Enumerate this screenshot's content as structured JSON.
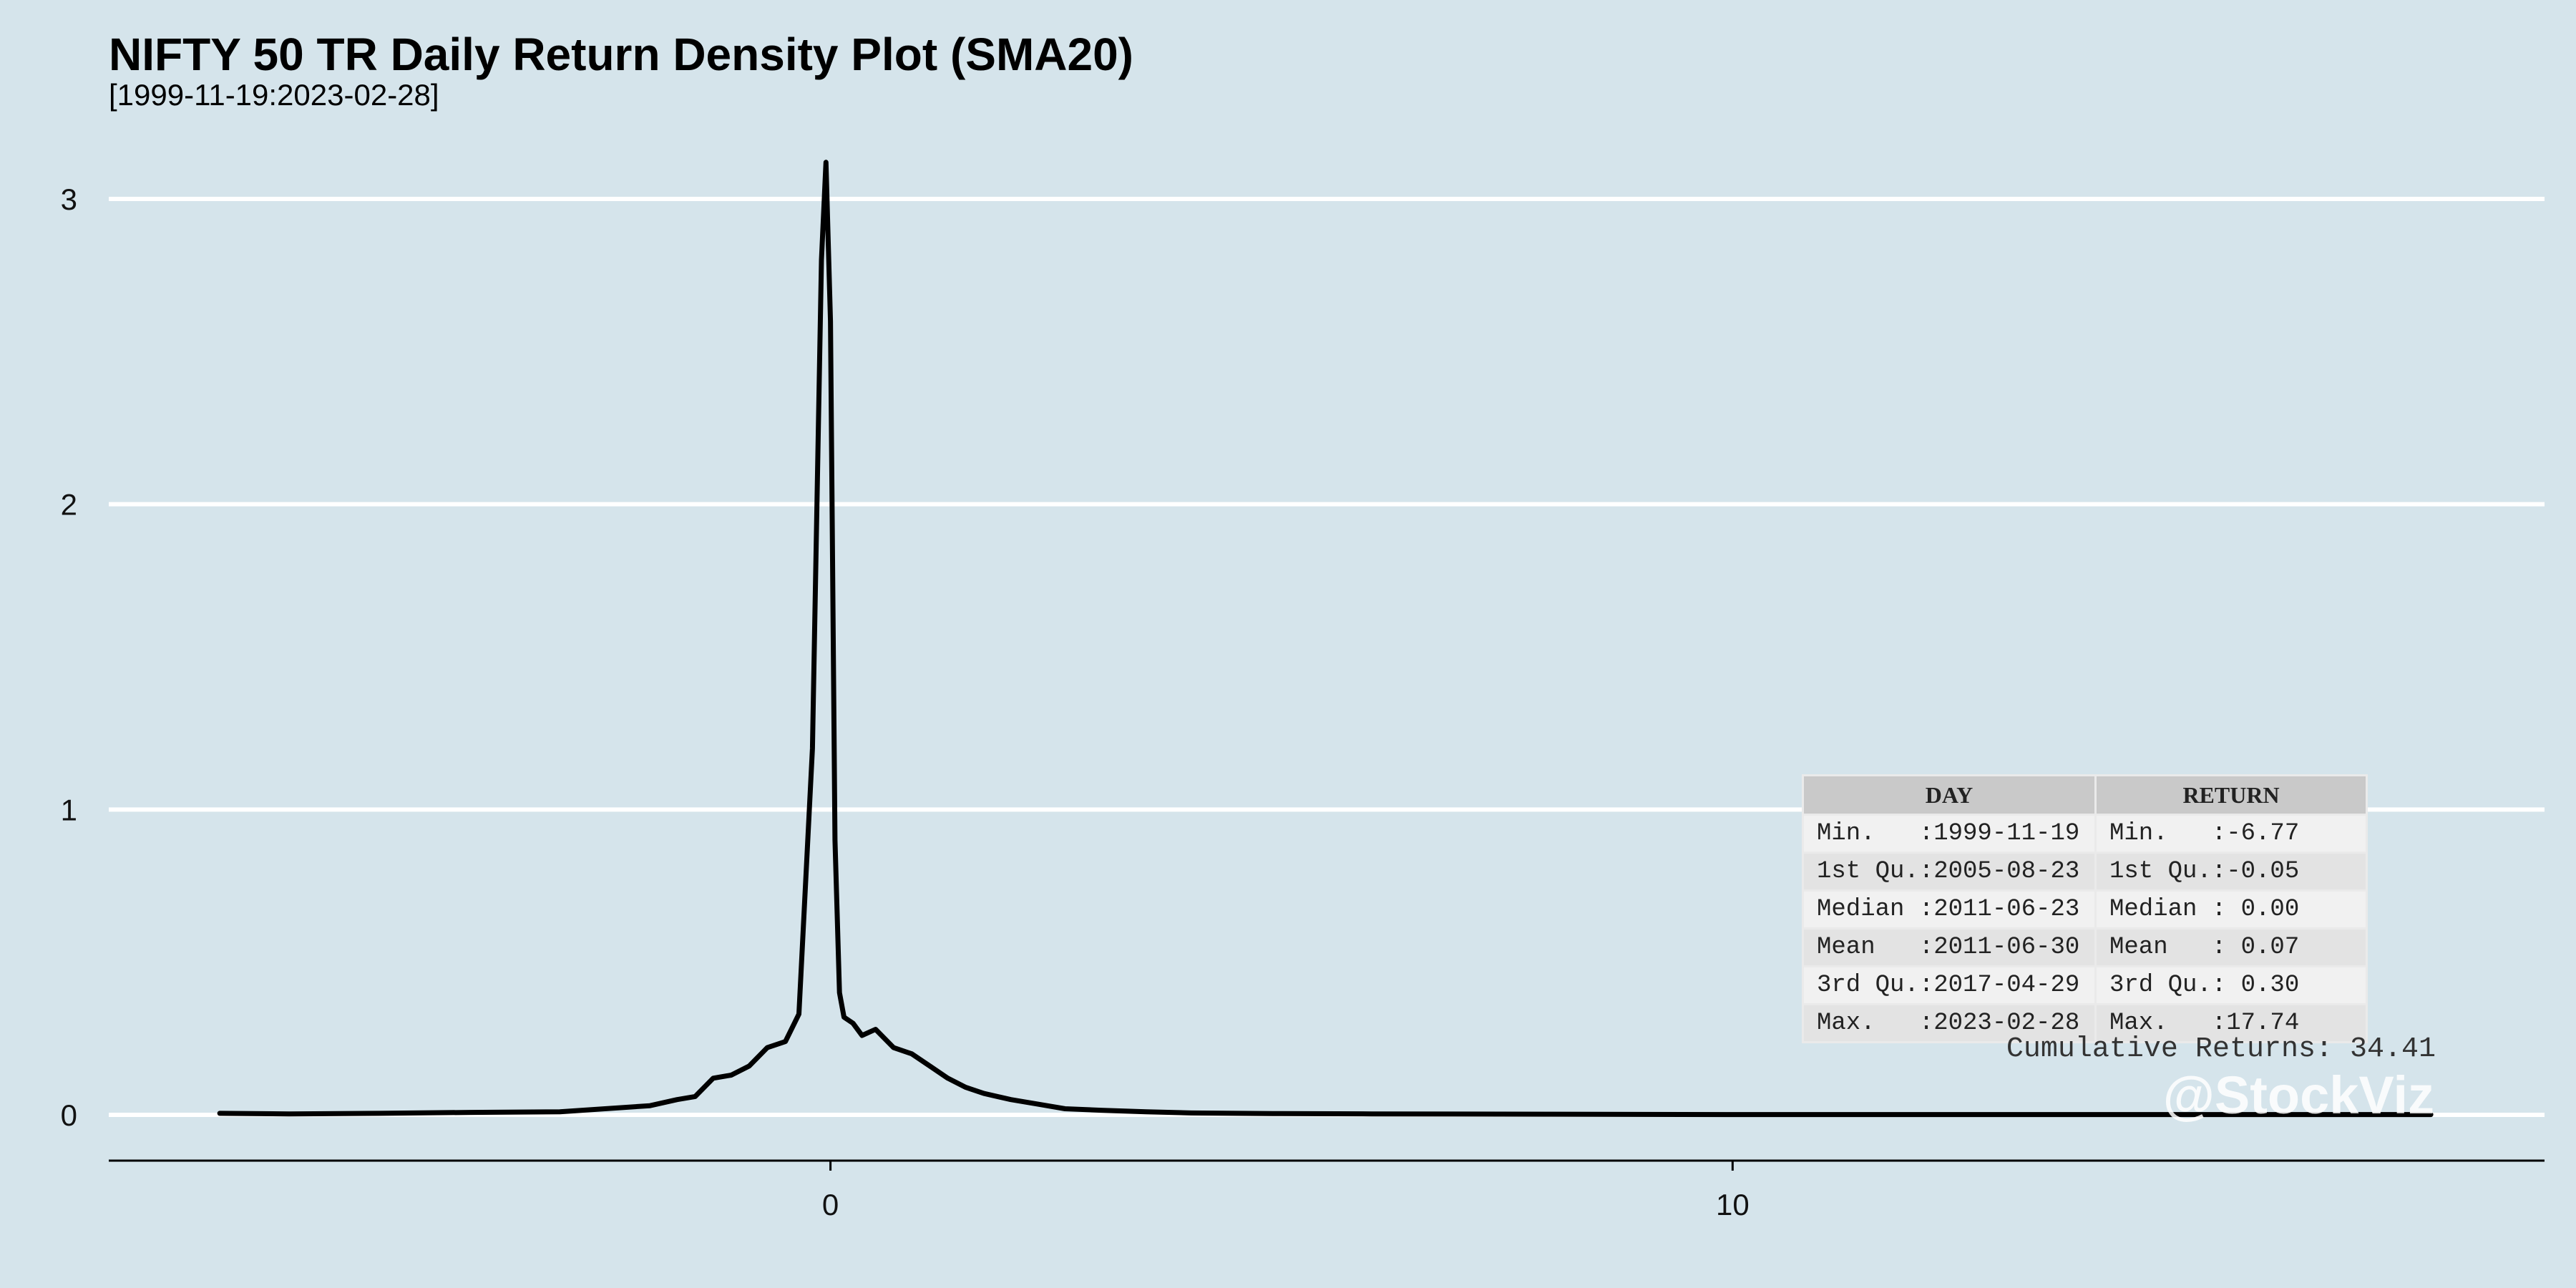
{
  "chart_data": {
    "type": "line",
    "title": "NIFTY 50 TR Daily Return Density Plot (SMA20)",
    "subtitle": "[1999-11-19:2023-02-28]",
    "xlabel": "",
    "ylabel": "",
    "xlim": [
      -8,
      19
    ],
    "ylim": [
      -0.15,
      3.3
    ],
    "x_ticks": [
      0,
      10
    ],
    "y_ticks": [
      0,
      1,
      2,
      3
    ],
    "grid": "horizontal",
    "series": [
      {
        "x": [
          -6.77,
          -6.0,
          -5.0,
          -4.0,
          -3.0,
          -2.5,
          -2.0,
          -1.7,
          -1.5,
          -1.3,
          -1.1,
          -0.9,
          -0.7,
          -0.5,
          -0.35,
          -0.2,
          -0.1,
          -0.05,
          0.0,
          0.05,
          0.1,
          0.15,
          0.25,
          0.35,
          0.5,
          0.7,
          0.9,
          1.1,
          1.3,
          1.5,
          1.7,
          2.0,
          2.3,
          2.6,
          3.0,
          3.5,
          4.0,
          5.0,
          6.0,
          8.0,
          10.0,
          12.0,
          14.0,
          16.0,
          17.74
        ],
        "y": [
          0.005,
          0.003,
          0.005,
          0.008,
          0.01,
          0.02,
          0.03,
          0.05,
          0.06,
          0.12,
          0.13,
          0.16,
          0.22,
          0.24,
          0.33,
          1.2,
          2.8,
          3.12,
          2.6,
          0.9,
          0.4,
          0.32,
          0.3,
          0.26,
          0.28,
          0.22,
          0.2,
          0.16,
          0.12,
          0.09,
          0.07,
          0.05,
          0.035,
          0.02,
          0.015,
          0.01,
          0.006,
          0.004,
          0.003,
          0.002,
          0.001,
          0.001,
          0.001,
          0.001,
          0.001
        ]
      }
    ]
  },
  "stats_table": {
    "headers": [
      "DAY",
      "RETURN"
    ],
    "rows": [
      [
        "Min.   :1999-11-19",
        "Min.   :-6.77"
      ],
      [
        "1st Qu.:2005-08-23",
        "1st Qu.:-0.05"
      ],
      [
        "Median :2011-06-23",
        "Median : 0.00"
      ],
      [
        "Mean   :2011-06-30",
        "Mean   : 0.07"
      ],
      [
        "3rd Qu.:2017-04-29",
        "3rd Qu.: 0.30"
      ],
      [
        "Max.   :2023-02-28",
        "Max.   :17.74"
      ]
    ]
  },
  "cumulative_returns": "Cumulative Returns: 34.41",
  "watermark": "@StockViz",
  "colors": {
    "background": "#d5e4eb",
    "line": "#000000",
    "grid": "#ffffff"
  }
}
